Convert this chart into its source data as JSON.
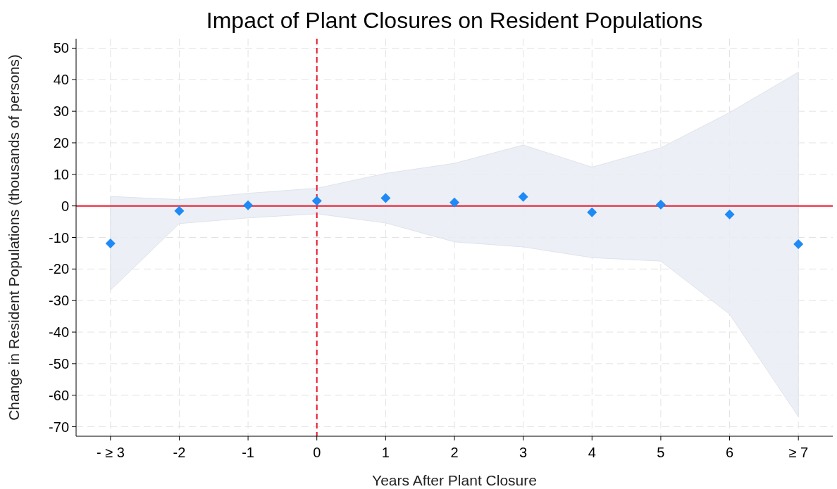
{
  "chart_data": {
    "type": "scatter",
    "title": "Impact of Plant Closures on Resident Populations",
    "xlabel": "Years After Plant Closure",
    "ylabel": "Change in Resident Populations (thousands of persons)",
    "categories": [
      "- ≥ 3",
      "-2",
      "-1",
      "0",
      "1",
      "2",
      "3",
      "4",
      "5",
      "6",
      "≥ 7"
    ],
    "series": [
      {
        "color": "#1f8af5",
        "values": [
          -11.9,
          -1.6,
          0.2,
          1.6,
          2.5,
          1.1,
          2.9,
          -2.0,
          0.4,
          -2.7,
          -12.1
        ],
        "lower": [
          -26.7,
          -5.6,
          -3.8,
          -2.5,
          -5.4,
          -11.4,
          -13.0,
          -16.4,
          -17.5,
          -34.3,
          -66.8
        ],
        "upper": [
          3.0,
          2.0,
          4.0,
          5.6,
          10.3,
          13.5,
          19.3,
          12.3,
          18.4,
          29.6,
          42.4
        ]
      }
    ],
    "ylim": [
      -73,
      53
    ],
    "yticks": [
      -70,
      -60,
      -50,
      -40,
      -30,
      -20,
      -10,
      0,
      10,
      20,
      30,
      40,
      50
    ],
    "grid": true,
    "marker": "diamond",
    "ref_lines": [
      {
        "axis": "y",
        "value": 0,
        "color": "#e8192c",
        "line_style": "solid"
      },
      {
        "axis": "x",
        "value": "0",
        "color": "#e8192c",
        "line_style": "dashed"
      }
    ]
  }
}
